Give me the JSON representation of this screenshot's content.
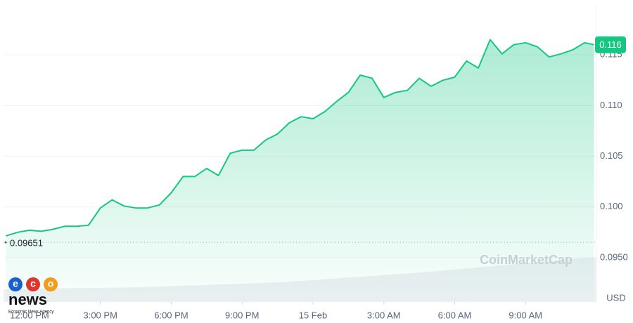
{
  "chart_data": {
    "type": "line",
    "x": [
      -1,
      -0.5,
      0,
      0.5,
      1,
      1.5,
      2,
      2.5,
      3,
      3.5,
      4,
      4.5,
      5,
      5.5,
      6,
      6.5,
      7,
      7.5,
      8,
      8.5,
      9,
      9.5,
      10,
      10.5,
      11,
      11.5,
      12,
      12.5,
      13,
      13.5,
      14,
      14.5,
      15,
      15.5,
      16,
      16.5,
      17,
      17.5,
      18,
      18.5,
      19,
      19.5,
      20,
      20.5,
      21,
      21.5,
      22,
      22.5,
      23,
      23.5,
      23.9
    ],
    "series": [
      {
        "name": "Price",
        "color": "#16c784",
        "values": [
          0.09715,
          0.0975,
          0.0977,
          0.0976,
          0.0978,
          0.0981,
          0.0981,
          0.0982,
          0.0999,
          0.1007,
          0.1001,
          0.0999,
          0.0999,
          0.1002,
          0.1014,
          0.103,
          0.103,
          0.1038,
          0.1031,
          0.1053,
          0.1056,
          0.1056,
          0.1066,
          0.1072,
          0.1083,
          0.1089,
          0.1087,
          0.1094,
          0.1104,
          0.1113,
          0.113,
          0.1127,
          0.1108,
          0.1113,
          0.1115,
          0.1127,
          0.1119,
          0.1125,
          0.1128,
          0.1144,
          0.1137,
          0.1165,
          0.1151,
          0.116,
          0.1162,
          0.1158,
          0.1148,
          0.1151,
          0.1155,
          0.1162,
          0.116
        ]
      }
    ],
    "xlim": [
      -1.1,
      24.0
    ],
    "xticks": [
      {
        "value": 0,
        "label": "12:00 PM"
      },
      {
        "value": 3,
        "label": "3:00 PM"
      },
      {
        "value": 6,
        "label": "6:00 PM"
      },
      {
        "value": 9,
        "label": "9:00 PM"
      },
      {
        "value": 12,
        "label": "15 Feb"
      },
      {
        "value": 15,
        "label": "3:00 AM"
      },
      {
        "value": 18,
        "label": "6:00 AM"
      },
      {
        "value": 21,
        "label": "9:00 AM"
      }
    ],
    "ylim": [
      0.09063,
      0.11986
    ],
    "yticks": [
      {
        "value": 0.095,
        "label": "0.0950"
      },
      {
        "value": 0.1,
        "label": "0.100"
      },
      0.105,
      {
        "value": 0.11,
        "label": "0.110"
      },
      0.115
    ],
    "open_price": 0.09651,
    "current_price": 0.116,
    "currency": "USD",
    "watermark": "CoinMarketCap",
    "grid": true
  },
  "logo": {
    "letters": [
      "e",
      "c",
      "o"
    ],
    "name": "news",
    "tagline": "Economic News Agency"
  }
}
